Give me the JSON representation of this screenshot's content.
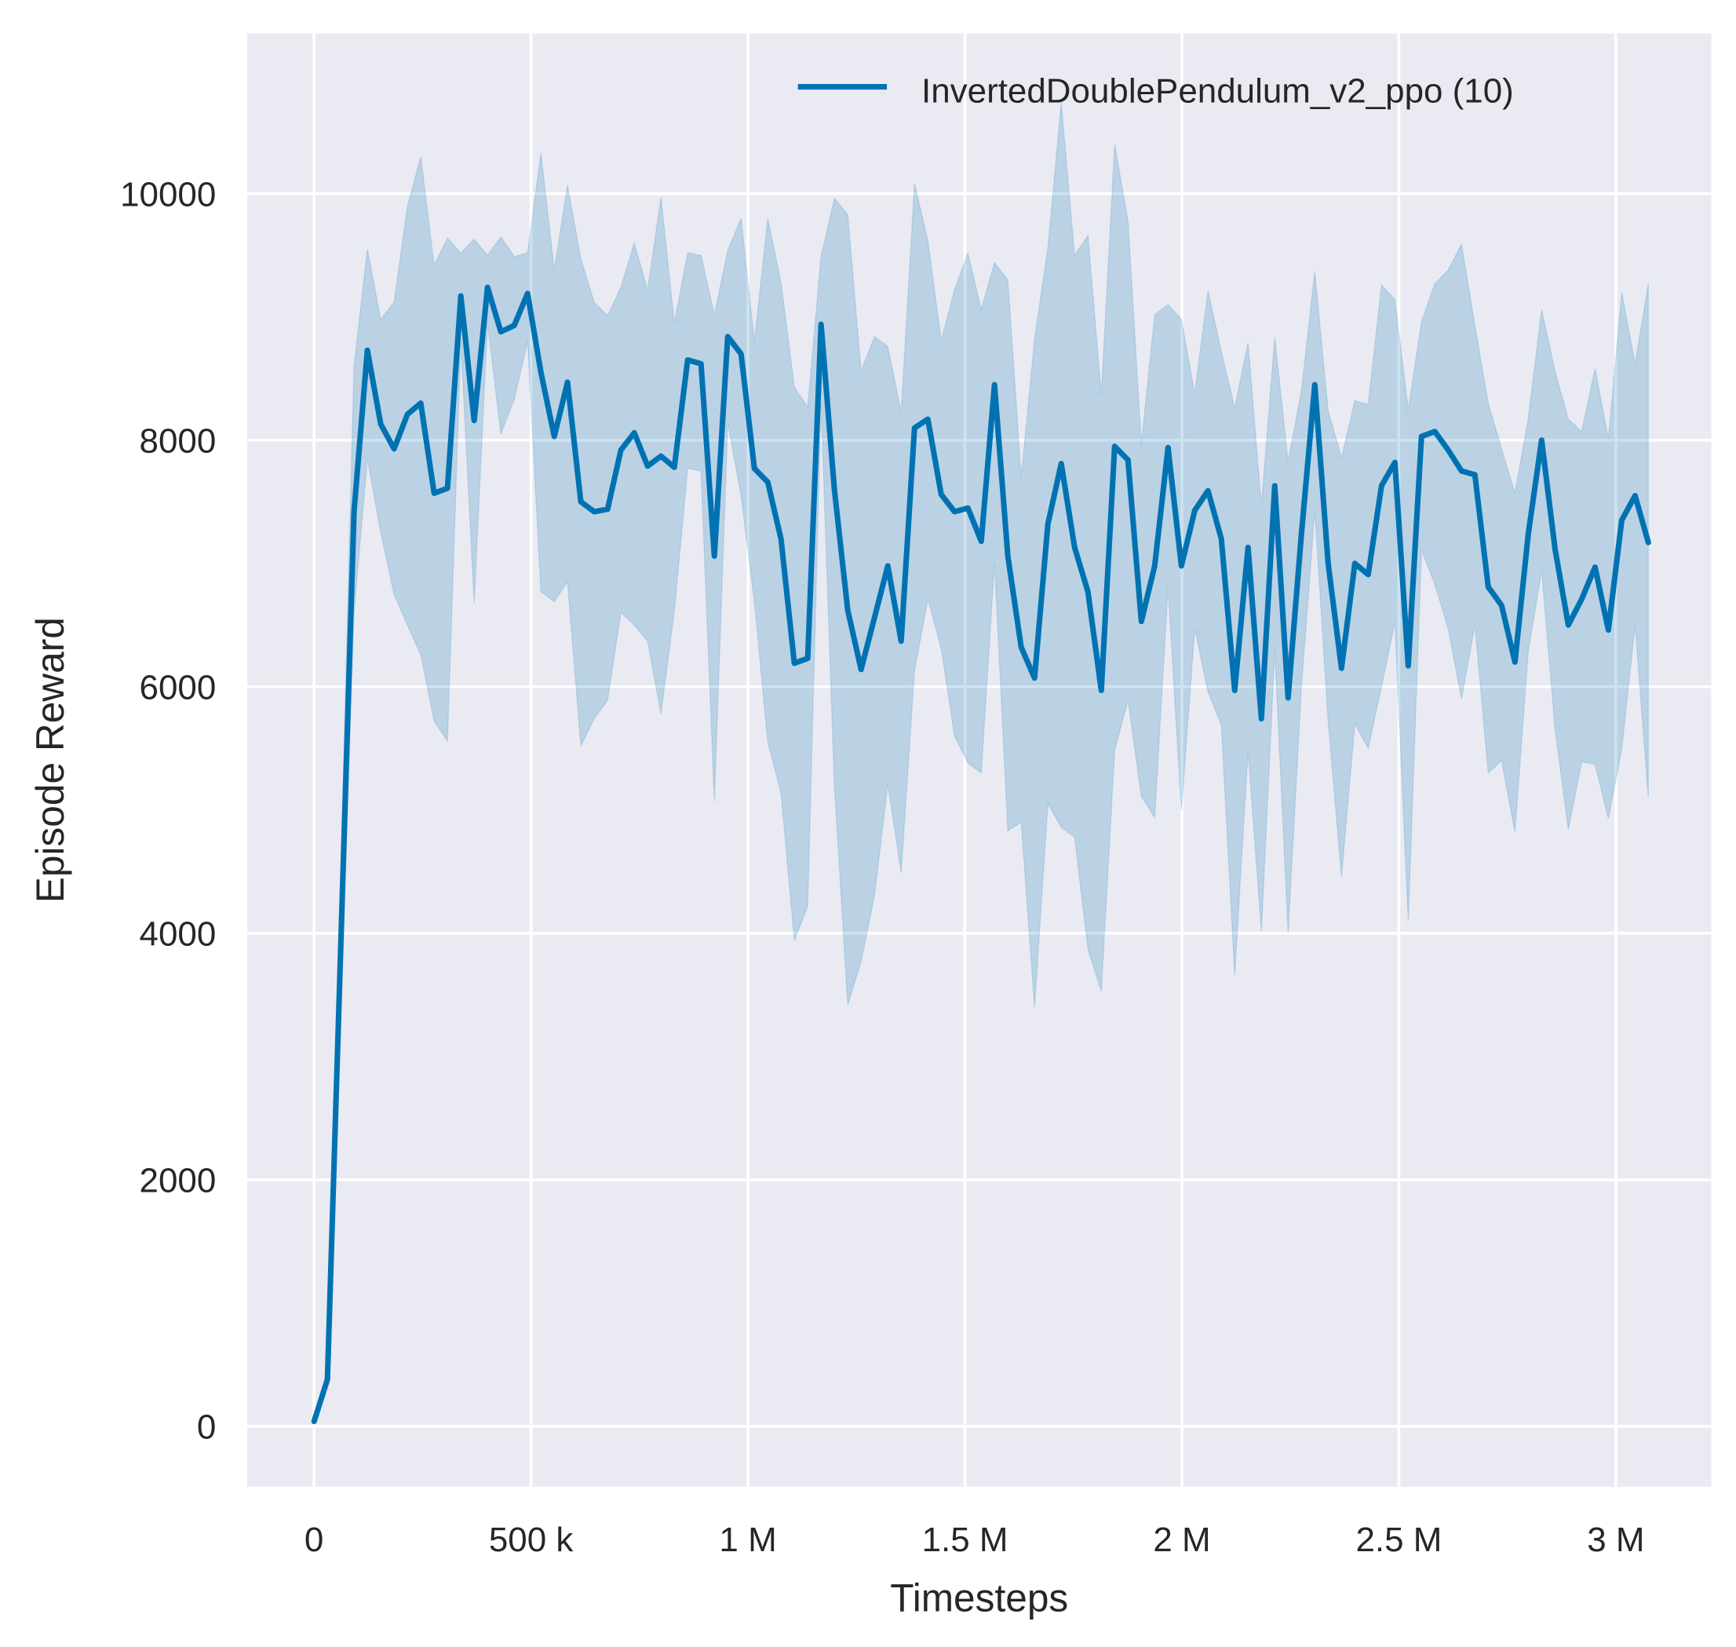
{
  "chart_data": {
    "type": "line",
    "title": "",
    "xlabel": "Timesteps",
    "ylabel": "Episode Reward",
    "xlim": [
      -154000,
      3220000
    ],
    "ylim": [
      -490,
      11300
    ],
    "x_step": 30750,
    "xticks": [
      0,
      500000,
      1000000,
      1500000,
      2000000,
      2500000,
      3000000
    ],
    "xtick_labels": [
      "0",
      "500 k",
      "1 M",
      "1.5 M",
      "2 M",
      "2.5 M",
      "3 M"
    ],
    "yticks": [
      0,
      2000,
      4000,
      6000,
      8000,
      10000
    ],
    "ytick_labels": [
      "0",
      "2000",
      "4000",
      "6000",
      "8000",
      "10000"
    ],
    "grid": true,
    "legend_placement": "top-right",
    "colors": {
      "background": "#eaeaf2",
      "grid": "#ffffff",
      "series": "#0072b2"
    },
    "series": [
      {
        "name": "InvertedDoublePendulum_v2_ppo (10)",
        "mean": [
          40,
          380,
          3900,
          7420,
          8730,
          8130,
          7930,
          8210,
          8300,
          7570,
          7610,
          9170,
          8160,
          9240,
          8880,
          8930,
          9190,
          8550,
          8030,
          8470,
          7500,
          7420,
          7440,
          7920,
          8060,
          7790,
          7870,
          7780,
          8650,
          8620,
          7060,
          8840,
          8700,
          7770,
          7660,
          7200,
          6190,
          6230,
          8940,
          7600,
          6620,
          6140,
          6560,
          6980,
          6370,
          8100,
          8170,
          7560,
          7420,
          7450,
          7180,
          8450,
          7060,
          6320,
          6070,
          7320,
          7810,
          7130,
          6770,
          5970,
          7950,
          7840,
          6530,
          6980,
          7940,
          6980,
          7430,
          7590,
          7200,
          5970,
          7130,
          5740,
          7630,
          5910,
          7240,
          8450,
          7000,
          6150,
          7000,
          6910,
          7630,
          7820,
          6170,
          8030,
          8070,
          7920,
          7750,
          7720,
          6810,
          6660,
          6200,
          7240,
          8000,
          7120,
          6500,
          6710,
          6970,
          6460,
          7350,
          7550,
          7170
        ],
        "upper": [
          50,
          400,
          4500,
          8600,
          9550,
          8980,
          9120,
          9900,
          10300,
          9420,
          9640,
          9520,
          9630,
          9500,
          9650,
          9490,
          9520,
          10330,
          9380,
          10070,
          9470,
          9120,
          9010,
          9240,
          9600,
          9220,
          9970,
          8950,
          9520,
          9500,
          9020,
          9540,
          9800,
          8800,
          9800,
          9280,
          8430,
          8270,
          9490,
          9960,
          9830,
          8560,
          8840,
          8760,
          8230,
          10080,
          9620,
          8810,
          9220,
          9520,
          9060,
          9440,
          9300,
          7700,
          8820,
          9560,
          10740,
          9500,
          9660,
          8370,
          10400,
          9780,
          7970,
          9020,
          9100,
          8980,
          8380,
          9210,
          8720,
          8260,
          8790,
          7470,
          8830,
          7830,
          8400,
          9370,
          8240,
          7860,
          8320,
          8290,
          9260,
          9140,
          8250,
          8960,
          9270,
          9380,
          9590,
          8930,
          8300,
          7930,
          7570,
          8180,
          9060,
          8560,
          8170,
          8070,
          8580,
          8010,
          9200,
          8620,
          9270
        ],
        "lower": [
          30,
          360,
          3300,
          6600,
          7850,
          7250,
          6750,
          6500,
          6260,
          5720,
          5560,
          8800,
          6680,
          8950,
          8050,
          8330,
          8800,
          6770,
          6690,
          6850,
          5520,
          5740,
          5890,
          6600,
          6500,
          6370,
          5780,
          6610,
          7770,
          7750,
          5070,
          8140,
          7550,
          6690,
          5550,
          5140,
          3940,
          4220,
          8300,
          5190,
          3420,
          3770,
          4300,
          5210,
          4490,
          6130,
          6710,
          6310,
          5600,
          5380,
          5300,
          7000,
          4830,
          4900,
          3400,
          5050,
          4860,
          4780,
          3870,
          3530,
          5480,
          5890,
          5110,
          4940,
          6800,
          5000,
          6470,
          5960,
          5690,
          3660,
          5480,
          4010,
          6300,
          4000,
          6000,
          7430,
          5720,
          4460,
          5700,
          5500,
          6000,
          6520,
          4100,
          7110,
          6830,
          6470,
          5900,
          6500,
          5300,
          5400,
          4820,
          6290,
          6940,
          5660,
          4840,
          5390,
          5370,
          4930,
          5490,
          6500,
          5100
        ]
      }
    ]
  }
}
